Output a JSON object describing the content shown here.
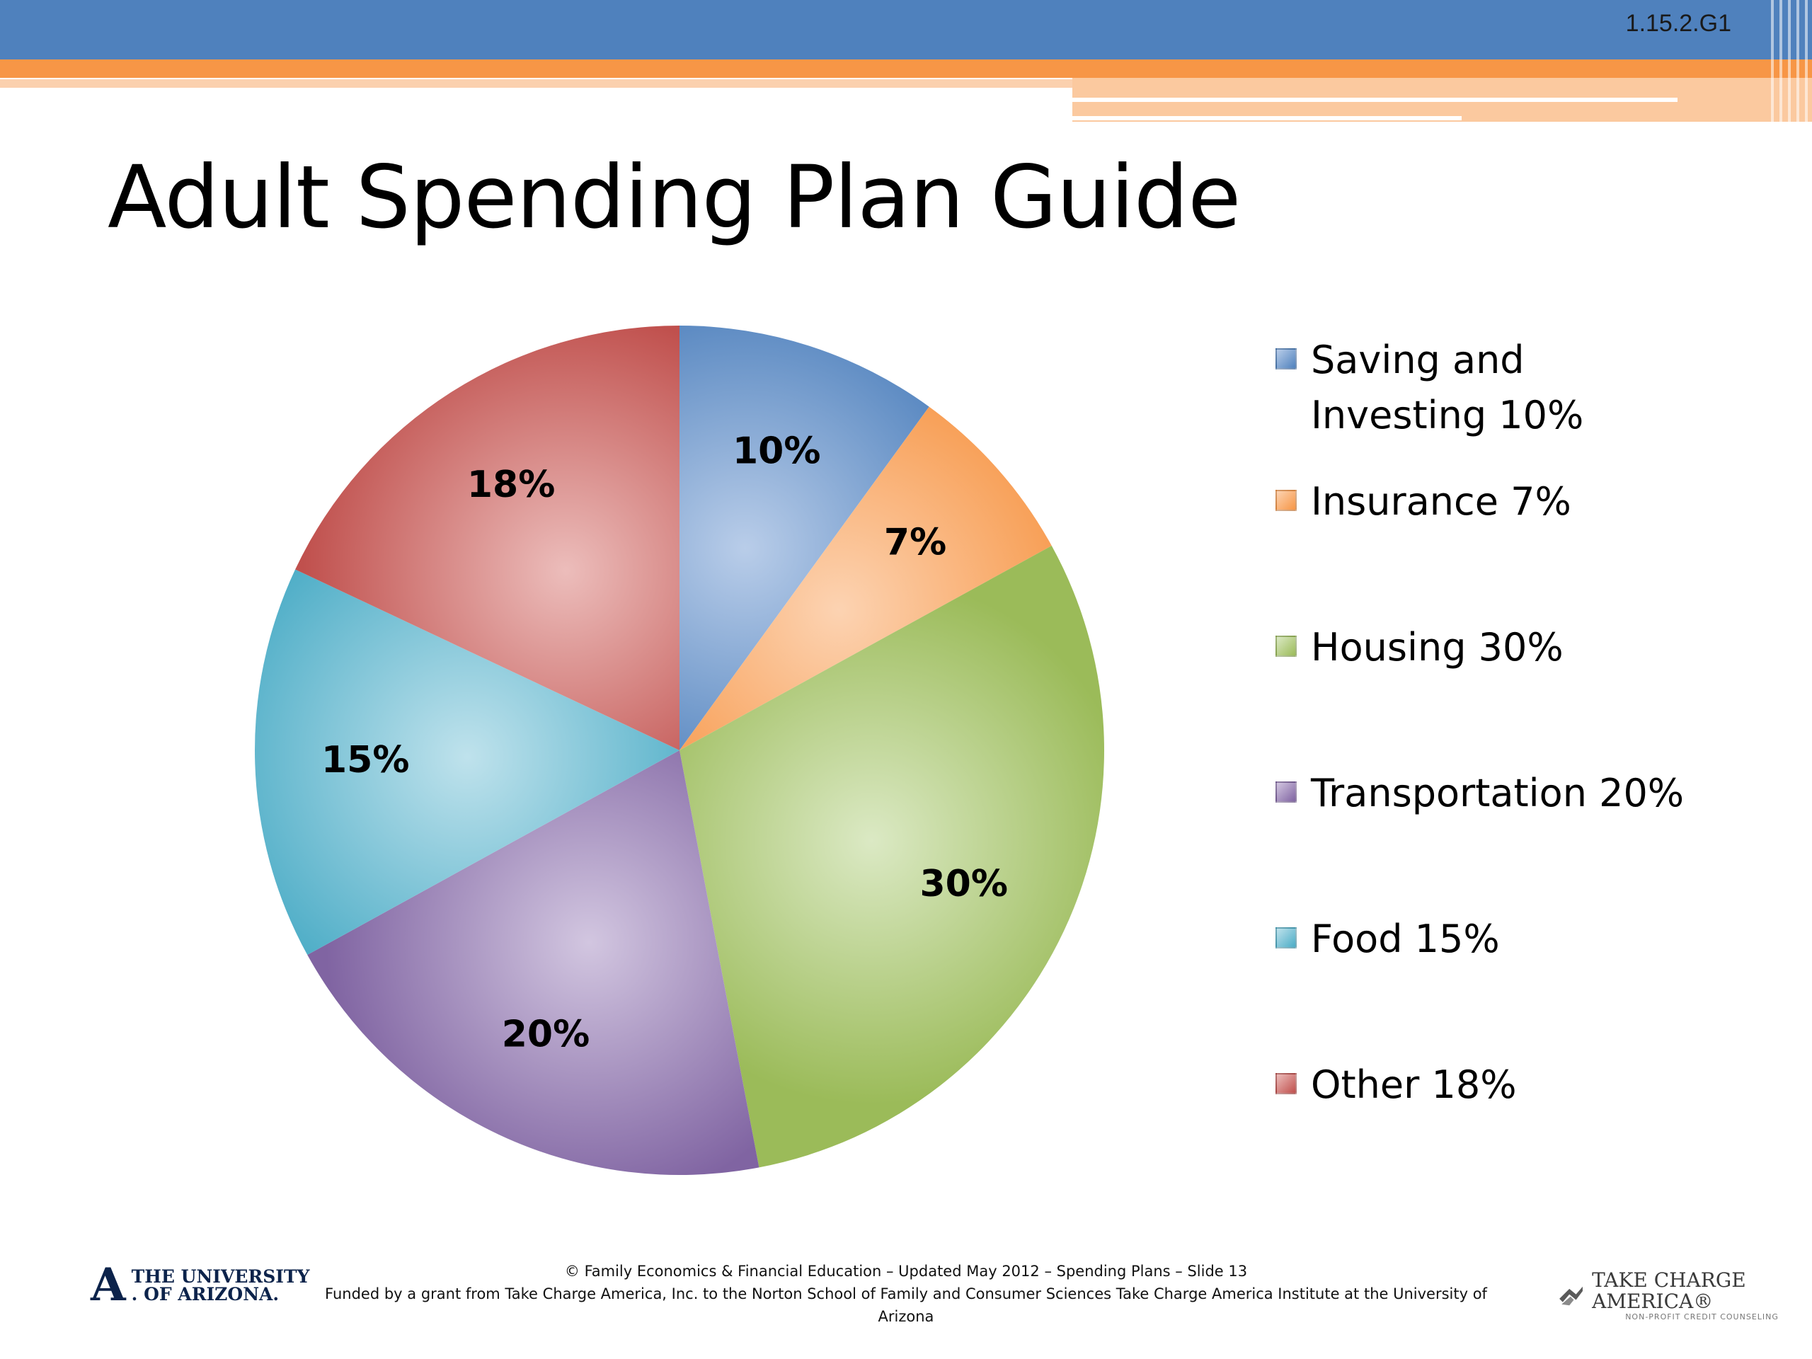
{
  "slide": {
    "code": "1.15.2.G1",
    "title": "Adult Spending Plan Guide"
  },
  "colors": {
    "header_blue": "#4f81bd",
    "header_orange": "#f79646"
  },
  "chart_data": {
    "type": "pie",
    "title": "",
    "legend_position": "right",
    "slices": [
      {
        "name": "Saving and Investing",
        "value": 10,
        "label": "10%",
        "legend": "Saving and Investing 10%",
        "color": "#4f81bd",
        "light": "#b9cde9"
      },
      {
        "name": "Insurance",
        "value": 7,
        "label": "7%",
        "legend": "Insurance 7%",
        "color": "#f79646",
        "light": "#fcd3b2"
      },
      {
        "name": "Housing",
        "value": 30,
        "label": "30%",
        "legend": "Housing 30%",
        "color": "#9bbb59",
        "light": "#dbe9c4"
      },
      {
        "name": "Transportation",
        "value": 20,
        "label": "20%",
        "legend": "Transportation 20%",
        "color": "#8064a2",
        "light": "#d2c6e0"
      },
      {
        "name": "Food",
        "value": 15,
        "label": "15%",
        "legend": "Food 15%",
        "color": "#4bacc6",
        "light": "#bfe2ec"
      },
      {
        "name": "Other",
        "value": 18,
        "label": "18%",
        "legend": "Other 18%",
        "color": "#c0504d",
        "light": "#ecbdbb"
      }
    ]
  },
  "footer": {
    "line1": "© Family Economics & Financial Education – Updated May 2012 – Spending Plans – Slide 13",
    "line2": "Funded by a grant from Take Charge America, Inc. to the Norton School of Family and Consumer Sciences  Take Charge America Institute at the University of Arizona"
  },
  "logos": {
    "university_mark": "A",
    "university_line1": "THE UNIVERSITY",
    "university_line2": ". OF ARIZONA.",
    "tca_name": "TAKE CHARGE AMERICA®",
    "tca_tagline": "NON-PROFIT CREDIT COUNSELING",
    "tca_icon": "flag-check-icon"
  }
}
